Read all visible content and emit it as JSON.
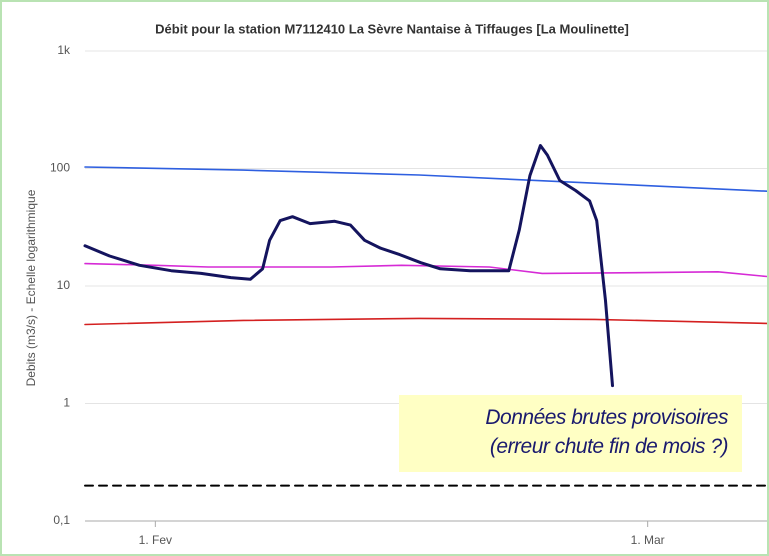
{
  "chart_data": {
    "type": "line",
    "title": "Débit pour la station M7112410 La Sèvre Nantaise à Tiffauges [La Moulinette]",
    "y_label": "Debits (m3/s) - Echelle logarithmique",
    "log_scale": true,
    "grid": true,
    "xlim": [
      -4,
      34.9
    ],
    "xticks": [
      {
        "value": 0,
        "label": "1. Fev"
      },
      {
        "value": 28,
        "label": "1. Mar"
      }
    ],
    "ylim": [
      0.1,
      1000
    ],
    "yticks": [
      {
        "value": 0.1,
        "label": "0,1"
      },
      1,
      10,
      100,
      {
        "value": 1000,
        "label": "1k"
      }
    ],
    "annotation": [
      "Données brutes provisoires",
      "(erreur chute fin de mois ?)"
    ],
    "series": [
      {
        "color": "#2e5fe0",
        "x": [
          -4,
          5,
          15,
          25,
          34.9
        ],
        "values": [
          103,
          97,
          88,
          75,
          64
        ]
      },
      {
        "color": "#d62ad6",
        "x": [
          -4,
          0,
          3,
          10,
          14,
          19,
          22,
          28,
          32,
          34.9
        ],
        "values": [
          15.5,
          15,
          14.5,
          14.5,
          15,
          14.5,
          12.8,
          13,
          13.2,
          12
        ]
      },
      {
        "color": "#d42020",
        "x": [
          -4,
          5,
          15,
          25,
          34.9
        ],
        "values": [
          4.7,
          5.1,
          5.3,
          5.2,
          4.8
        ]
      },
      {
        "color": "#000000",
        "dashed": true,
        "x": [
          -4,
          34.9
        ],
        "values": [
          0.2,
          0.2
        ]
      },
      {
        "color": "#14145e",
        "x": [
          -4,
          -2.6,
          -0.9,
          0.9,
          2.6,
          4.3,
          5.4,
          6.1,
          6.5,
          7.1,
          7.8,
          8.8,
          10.2,
          11.1,
          11.9,
          12.8,
          13.9,
          15.1,
          16.2,
          17.9,
          20.1,
          20.7,
          21.3,
          21.9,
          22.3,
          23,
          23.9,
          24.7,
          25.1,
          25.6,
          26
        ],
        "values": [
          22,
          18,
          15,
          13.5,
          12.8,
          11.8,
          11.4,
          14,
          24.5,
          36,
          38.9,
          34,
          35.5,
          33,
          24.5,
          21,
          18.5,
          15.8,
          14,
          13.5,
          13.5,
          30,
          87,
          157,
          130,
          79,
          65,
          53,
          36,
          7.5,
          1.42
        ]
      }
    ]
  }
}
